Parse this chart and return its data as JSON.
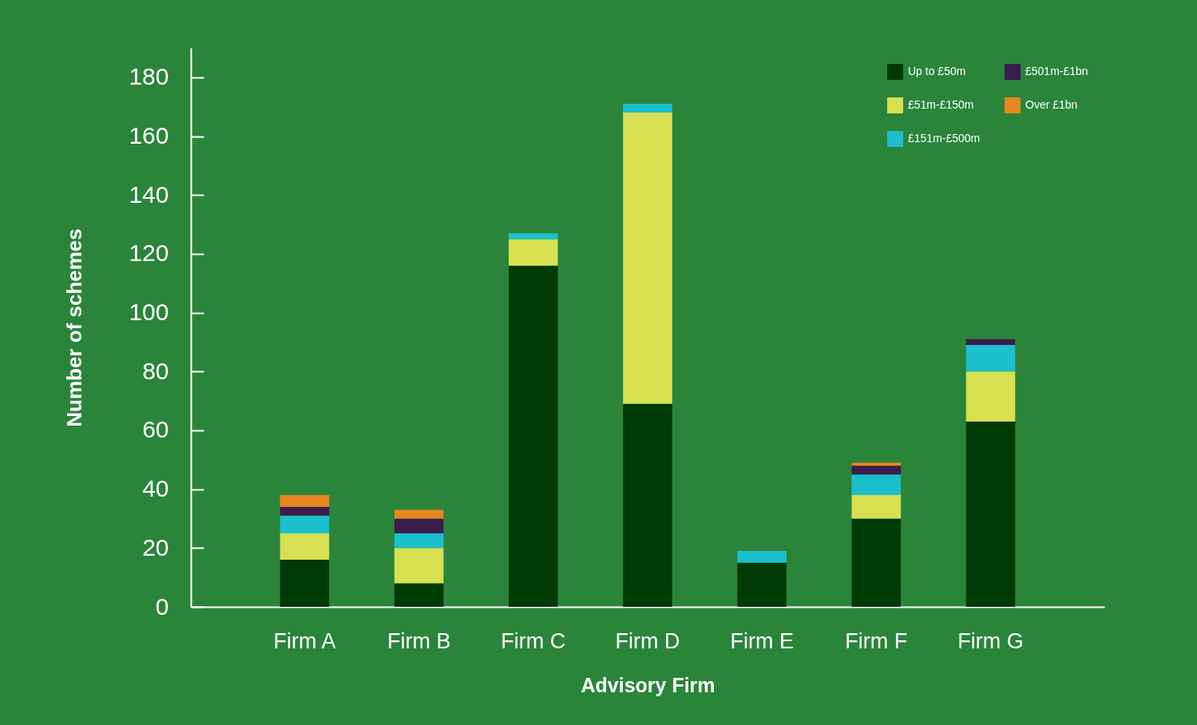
{
  "chart_data": {
    "type": "bar",
    "stacked": true,
    "xlabel": "Advisory Firm",
    "ylabel": "Number of schemes",
    "categories": [
      "Firm A",
      "Firm B",
      "Firm C",
      "Firm D",
      "Firm E",
      "Firm F",
      "Firm G"
    ],
    "series": [
      {
        "name": "Up to £50m",
        "color": "#003a05",
        "values": [
          16,
          8,
          116,
          69,
          15,
          30,
          63
        ]
      },
      {
        "name": "£51m-£150m",
        "color": "#d6e050",
        "values": [
          9,
          12,
          9,
          99,
          0,
          8,
          17
        ]
      },
      {
        "name": "£151m-£500m",
        "color": "#1cbfcc",
        "values": [
          6,
          5,
          2,
          3,
          4,
          7,
          9
        ]
      },
      {
        "name": "£501m-£1bn",
        "color": "#3a1c4d",
        "values": [
          3,
          5,
          0,
          0,
          0,
          3,
          2
        ]
      },
      {
        "name": "Over £1bn",
        "color": "#e8861f",
        "values": [
          4,
          3,
          0,
          0,
          0,
          1,
          0
        ]
      }
    ],
    "ylim": [
      0,
      190
    ],
    "yticks": [
      0,
      20,
      40,
      60,
      80,
      100,
      120,
      140,
      160,
      180
    ],
    "grid": false,
    "legend": "top right"
  }
}
